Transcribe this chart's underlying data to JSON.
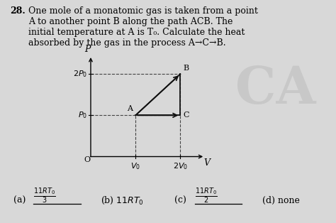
{
  "title_num": "28.",
  "title_text": "One mole of a monatomic gas is taken from a point\nA to another point B along the path ACB. The\ninitial temperature at A is T₀. Calculate the heat\nabsorbed by the gas in the process A→C→B.",
  "points": {
    "A": [
      1,
      1
    ],
    "B": [
      2,
      2
    ],
    "C": [
      2,
      1
    ]
  },
  "xlim": [
    -0.15,
    2.7
  ],
  "ylim": [
    -0.15,
    2.55
  ],
  "xlabel": "V",
  "ylabel": "P",
  "bg_color": "#d8d8d8",
  "line_color": "#111111",
  "dashed_color": "#444444",
  "ca_color": "#c0c0c0",
  "options_text": "(a)   $\\dfrac{11RT_0}{3}$     (b) $11RT_0$     (c)   $\\dfrac{11RT_0}{2}$     (d) none"
}
